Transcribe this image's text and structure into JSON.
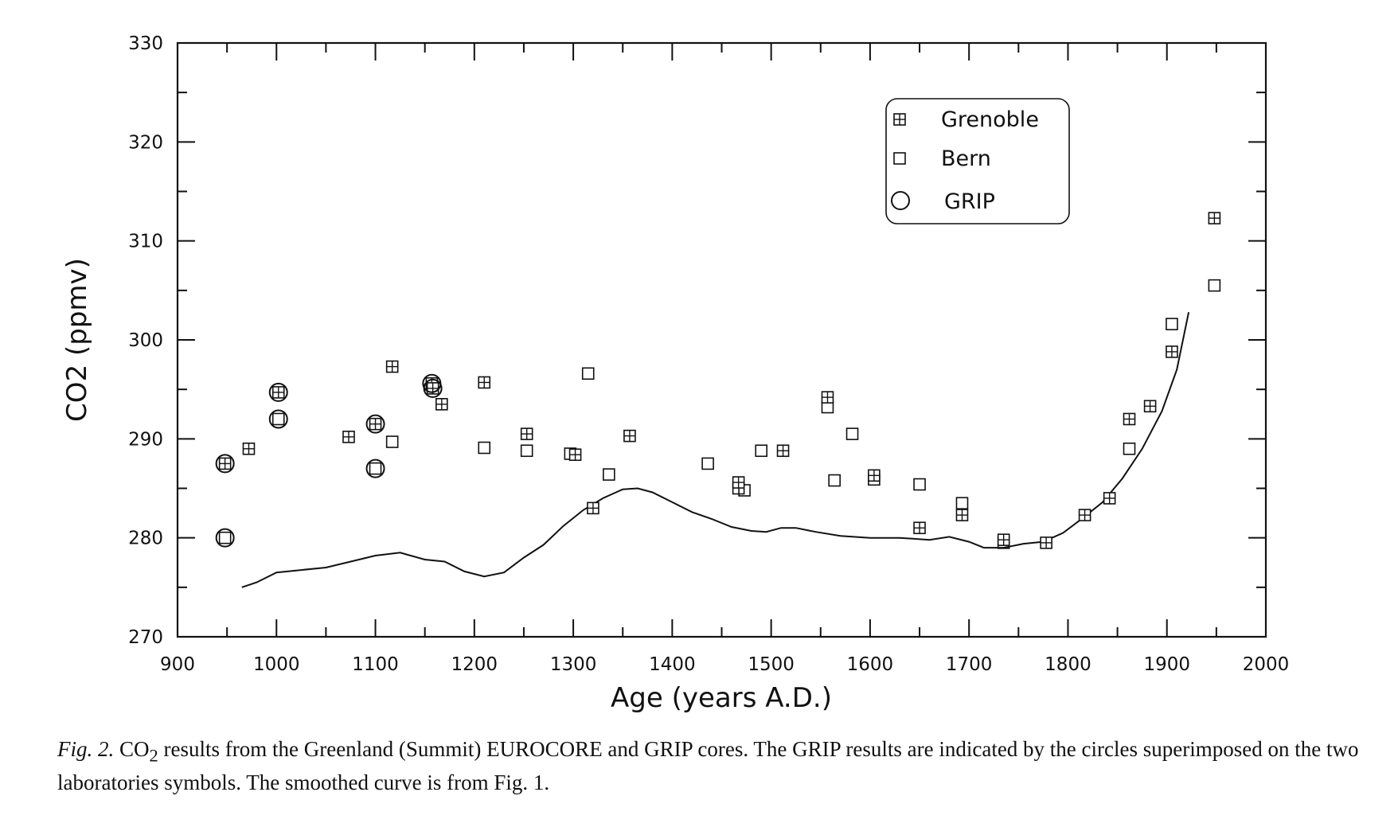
{
  "chart_data": {
    "type": "scatter",
    "xlabel": "Age (years A.D.)",
    "ylabel": "CO2 (ppmv)",
    "xlim": [
      900,
      2000
    ],
    "ylim": [
      270,
      330
    ],
    "xticks": [
      900,
      1000,
      1100,
      1200,
      1300,
      1400,
      1500,
      1600,
      1700,
      1800,
      1900,
      2000
    ],
    "yticks": [
      270,
      280,
      290,
      300,
      310,
      320,
      330
    ],
    "grid": false,
    "legend_placement": "top-right",
    "series": [
      {
        "name": "Grenoble",
        "marker": "square-plus",
        "points": [
          [
            948,
            287.5
          ],
          [
            1002,
            294.7
          ],
          [
            1100,
            291.5
          ],
          [
            972,
            289
          ],
          [
            1073,
            290.2
          ],
          [
            1117,
            297.3
          ],
          [
            1157,
            295.6
          ],
          [
            1158,
            295.1
          ],
          [
            1167,
            293.5
          ],
          [
            1210,
            295.7
          ],
          [
            1253,
            290.5
          ],
          [
            1302,
            288.4
          ],
          [
            1320,
            283
          ],
          [
            1357,
            290.3
          ],
          [
            1467,
            285.6
          ],
          [
            1512,
            288.8
          ],
          [
            1557,
            294.2
          ],
          [
            1604,
            286.3
          ],
          [
            1650,
            281
          ],
          [
            1693,
            282.3
          ],
          [
            1735,
            279.8
          ],
          [
            1778,
            279.5
          ],
          [
            1817,
            282.3
          ],
          [
            1842,
            284
          ],
          [
            1862,
            292
          ],
          [
            1883,
            293.3
          ],
          [
            1905,
            298.8
          ],
          [
            1948,
            312.3
          ]
        ]
      },
      {
        "name": "Bern",
        "marker": "square",
        "points": [
          [
            948,
            280
          ],
          [
            1002,
            292
          ],
          [
            1100,
            287
          ],
          [
            1117,
            289.7
          ],
          [
            1210,
            289.1
          ],
          [
            1253,
            288.8
          ],
          [
            1297,
            288.5
          ],
          [
            1315,
            296.6
          ],
          [
            1336,
            286.4
          ],
          [
            1436,
            287.5
          ],
          [
            1467,
            285
          ],
          [
            1473,
            284.8
          ],
          [
            1490,
            288.8
          ],
          [
            1557,
            293.2
          ],
          [
            1564,
            285.8
          ],
          [
            1582,
            290.5
          ],
          [
            1604,
            285.9
          ],
          [
            1650,
            285.4
          ],
          [
            1693,
            283.5
          ],
          [
            1735,
            279.5
          ],
          [
            1862,
            289
          ],
          [
            1905,
            301.6
          ],
          [
            1948,
            305.5
          ]
        ]
      },
      {
        "name": "GRIP",
        "marker": "circle",
        "points": [
          [
            948,
            287.5
          ],
          [
            948,
            280
          ],
          [
            1002,
            294.7
          ],
          [
            1002,
            292
          ],
          [
            1100,
            291.5
          ],
          [
            1100,
            287
          ],
          [
            1157,
            295.6
          ],
          [
            1158,
            295.1
          ]
        ]
      },
      {
        "type": "line",
        "points": [
          [
            965,
            275
          ],
          [
            980,
            275.5
          ],
          [
            1000,
            276.5
          ],
          [
            1020,
            276.7
          ],
          [
            1050,
            277
          ],
          [
            1075,
            277.6
          ],
          [
            1100,
            278.2
          ],
          [
            1125,
            278.5
          ],
          [
            1150,
            277.8
          ],
          [
            1170,
            277.6
          ],
          [
            1190,
            276.6
          ],
          [
            1210,
            276.1
          ],
          [
            1230,
            276.5
          ],
          [
            1250,
            278
          ],
          [
            1270,
            279.3
          ],
          [
            1290,
            281.2
          ],
          [
            1310,
            282.8
          ],
          [
            1330,
            284
          ],
          [
            1350,
            284.9
          ],
          [
            1365,
            285
          ],
          [
            1380,
            284.6
          ],
          [
            1400,
            283.6
          ],
          [
            1420,
            282.6
          ],
          [
            1440,
            281.9
          ],
          [
            1460,
            281.1
          ],
          [
            1480,
            280.7
          ],
          [
            1495,
            280.6
          ],
          [
            1510,
            281
          ],
          [
            1525,
            281
          ],
          [
            1545,
            280.6
          ],
          [
            1570,
            280.2
          ],
          [
            1600,
            280
          ],
          [
            1630,
            280
          ],
          [
            1660,
            279.8
          ],
          [
            1680,
            280.1
          ],
          [
            1700,
            279.6
          ],
          [
            1715,
            279
          ],
          [
            1735,
            279
          ],
          [
            1755,
            279.4
          ],
          [
            1775,
            279.6
          ],
          [
            1795,
            280.5
          ],
          [
            1815,
            282
          ],
          [
            1835,
            283.6
          ],
          [
            1855,
            286
          ],
          [
            1875,
            289
          ],
          [
            1895,
            292.8
          ],
          [
            1910,
            297
          ],
          [
            1922,
            302.8
          ]
        ]
      }
    ]
  },
  "caption": {
    "label": "Fig. 2.",
    "text_a": " CO",
    "sub": "2",
    "text_b": " results from the Greenland (Summit) EUROCORE and GRIP cores. The GRIP results are indicated by the circles superimposed on the two laboratories symbols. The smoothed curve is from Fig. 1."
  }
}
